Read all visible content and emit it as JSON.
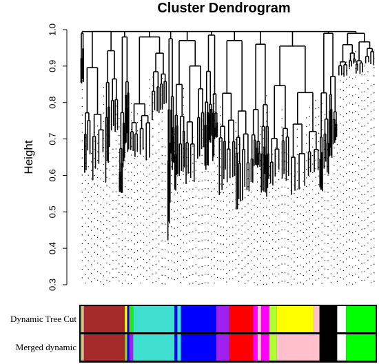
{
  "chart_data": {
    "type": "dendrogram",
    "title": "Cluster Dendrogram",
    "ylabel": "Height",
    "xlabel": "",
    "ylim": [
      0.3,
      1.0
    ],
    "yticks": [
      0.3,
      0.4,
      0.5,
      0.6,
      0.7,
      0.8,
      0.9,
      1.0
    ],
    "grid": false,
    "leaf_dots": true,
    "root_height": 0.995,
    "clusters": [
      {
        "start": 0.0,
        "end": 0.011,
        "height": 0.99,
        "min": 0.84
      },
      {
        "start": 0.011,
        "end": 0.13,
        "height": 0.995,
        "min": 0.52
      },
      {
        "start": 0.13,
        "end": 0.165,
        "height": 0.98,
        "min": 0.49
      },
      {
        "start": 0.165,
        "end": 0.295,
        "height": 0.98,
        "min": 0.57
      },
      {
        "start": 0.295,
        "end": 0.318,
        "height": 0.975,
        "min": 0.39
      },
      {
        "start": 0.318,
        "end": 0.42,
        "height": 0.97,
        "min": 0.46
      },
      {
        "start": 0.42,
        "end": 0.465,
        "height": 0.985,
        "min": 0.51
      },
      {
        "start": 0.465,
        "end": 0.575,
        "height": 0.97,
        "min": 0.4
      },
      {
        "start": 0.575,
        "end": 0.64,
        "height": 0.96,
        "min": 0.45
      },
      {
        "start": 0.64,
        "end": 0.81,
        "height": 0.955,
        "min": 0.45
      },
      {
        "start": 0.81,
        "end": 0.87,
        "height": 0.99,
        "min": 0.51
      },
      {
        "start": 0.87,
        "end": 1.0,
        "height": 0.99,
        "min": 0.81
      }
    ],
    "color_rows": [
      {
        "label": "Dynamic Tree Cut",
        "segments": [
          {
            "end": 0.005,
            "color": "#9acd32"
          },
          {
            "end": 0.011,
            "color": "#ffc0cb"
          },
          {
            "end": 0.15,
            "color": "#a52a2a"
          },
          {
            "end": 0.158,
            "color": "#ffff00"
          },
          {
            "end": 0.165,
            "color": "#0000ff"
          },
          {
            "end": 0.17,
            "color": "#9acd32"
          },
          {
            "end": 0.178,
            "color": "#00ff00"
          },
          {
            "end": 0.318,
            "color": "#40e0d0"
          },
          {
            "end": 0.328,
            "color": "#0000ff"
          },
          {
            "end": 0.34,
            "color": "#40e0d0"
          },
          {
            "end": 0.46,
            "color": "#0000ff"
          },
          {
            "end": 0.505,
            "color": "#a020f0"
          },
          {
            "end": 0.585,
            "color": "#ff0000"
          },
          {
            "end": 0.6,
            "color": "#ff00ff"
          },
          {
            "end": 0.612,
            "color": "#ffc0cb"
          },
          {
            "end": 0.64,
            "color": "#ff00ff"
          },
          {
            "end": 0.665,
            "color": "#adff2f"
          },
          {
            "end": 0.79,
            "color": "#ffff00"
          },
          {
            "end": 0.81,
            "color": "#ffc0cb"
          },
          {
            "end": 0.87,
            "color": "#000000"
          },
          {
            "end": 0.9,
            "color": "#ffffff"
          },
          {
            "end": 1.0,
            "color": "#00ff00"
          }
        ]
      },
      {
        "label": "Merged dynamic",
        "segments": [
          {
            "end": 0.005,
            "color": "#9acd32"
          },
          {
            "end": 0.011,
            "color": "#ffc0cb"
          },
          {
            "end": 0.15,
            "color": "#a52a2a"
          },
          {
            "end": 0.158,
            "color": "#9acd32"
          },
          {
            "end": 0.165,
            "color": "#0000ff"
          },
          {
            "end": 0.178,
            "color": "#a020f0"
          },
          {
            "end": 0.318,
            "color": "#40e0d0"
          },
          {
            "end": 0.328,
            "color": "#0000ff"
          },
          {
            "end": 0.34,
            "color": "#40e0d0"
          },
          {
            "end": 0.46,
            "color": "#0000ff"
          },
          {
            "end": 0.505,
            "color": "#a020f0"
          },
          {
            "end": 0.585,
            "color": "#ff0000"
          },
          {
            "end": 0.6,
            "color": "#ff00ff"
          },
          {
            "end": 0.612,
            "color": "#ffc0cb"
          },
          {
            "end": 0.64,
            "color": "#ff00ff"
          },
          {
            "end": 0.665,
            "color": "#adff2f"
          },
          {
            "end": 0.81,
            "color": "#ffc0cb"
          },
          {
            "end": 0.87,
            "color": "#000000"
          },
          {
            "end": 0.9,
            "color": "#ffffff"
          },
          {
            "end": 1.0,
            "color": "#00ff00"
          }
        ]
      }
    ]
  }
}
